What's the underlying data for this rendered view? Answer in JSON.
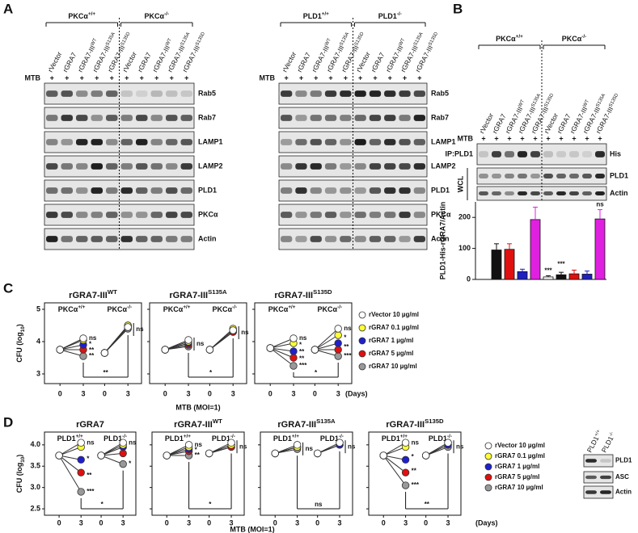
{
  "lanes": [
    {
      "name": "rVector"
    },
    {
      "name": "rGRA7"
    },
    {
      "name": "rGRA7-III",
      "sup": "WT"
    },
    {
      "name": "rGRA7-III",
      "sup": "S135A"
    },
    {
      "name": "rGRA7-III",
      "sup": "S135D"
    }
  ],
  "mtb": "MTB",
  "plus": "+",
  "panel_A": {
    "label": "A",
    "groups_left": [
      {
        "base": "PKCα",
        "sup": "+/+"
      },
      {
        "base": "PKCα",
        "sup": "-/-"
      }
    ],
    "groups_right": [
      {
        "base": "PLD1",
        "sup": "+/+"
      },
      {
        "base": "PLD1",
        "sup": "-/-"
      }
    ],
    "blots_left": [
      "Rab5",
      "Rab7",
      "LAMP1",
      "LAMP2",
      "PLD1",
      "PKCα",
      "Actin"
    ],
    "blots_right": [
      "Rab5",
      "Rab7",
      "LAMP1",
      "LAMP2",
      "PLD1",
      "PKCα",
      "Actin"
    ]
  },
  "panel_B": {
    "label": "B",
    "groups": [
      {
        "base": "PKCα",
        "sup": "+/+"
      },
      {
        "base": "PKCα",
        "sup": "-/-"
      }
    ],
    "ip": "IP:PLD1",
    "wcl": "WCL",
    "blots": [
      "His",
      "PLD1",
      "Actin"
    ],
    "chart": {
      "type": "bar",
      "ylabel": "PLD1-His-rGRA7/Actin",
      "ylim": [
        0,
        250
      ],
      "yticks": [
        0,
        100,
        200
      ],
      "values": [
        0,
        95,
        97,
        25,
        193,
        8,
        15,
        18,
        17,
        195
      ],
      "errors": [
        0,
        20,
        18,
        8,
        40,
        4,
        8,
        12,
        10,
        30
      ],
      "colors": [
        "#ffffff",
        "#111111",
        "#e01010",
        "#2020c0",
        "#e020e0",
        "#ffffff",
        "#111111",
        "#e01010",
        "#2020c0",
        "#e020e0"
      ],
      "value_annotations": [
        null,
        null,
        null,
        null,
        null,
        "***",
        "***",
        null,
        null,
        "ns"
      ]
    }
  },
  "panel_C": {
    "label": "C",
    "xlabel": "MTB (MOI=1)",
    "days": "(Days)",
    "ylabel": {
      "text": "CFU (log",
      "sub": "10",
      "end": ")"
    },
    "ylim": [
      2.7,
      5.2
    ],
    "yticks": [
      3,
      4,
      5
    ],
    "categories": [
      "0",
      "3",
      "0",
      "3"
    ],
    "group_labels": [
      {
        "base": "PKCα",
        "sup": "+/+"
      },
      {
        "base": "PKCα",
        "sup": "-/-"
      }
    ],
    "series": [
      {
        "name": "rVector 10 µg/ml",
        "color": "#ffffff"
      },
      {
        "name": "rGRA7 0.1 µg/ml",
        "color": "#ffff33"
      },
      {
        "name": "rGRA7 1 µg/ml",
        "color": "#1f1fd0"
      },
      {
        "name": "rGRA7 5 µg/ml",
        "color": "#e01010"
      },
      {
        "name": "rGRA7 10 µg/ml",
        "color": "#999999"
      }
    ],
    "charts": [
      {
        "type": "line",
        "title": {
          "name": "rGRA7-III",
          "sup": "WT"
        },
        "values": [
          [
            3.75,
            4.1,
            3.65,
            4.45
          ],
          [
            3.75,
            4.05,
            3.65,
            4.5
          ],
          [
            3.75,
            3.9,
            3.65,
            4.45
          ],
          [
            3.75,
            3.75,
            3.65,
            4.5
          ],
          [
            3.75,
            3.55,
            3.65,
            4.4
          ]
        ],
        "stars_left": [
          "ns",
          "*",
          "**",
          "**"
        ],
        "stars_right": [
          "ns"
        ],
        "bracket": "**"
      },
      {
        "type": "line",
        "title": {
          "name": "rGRA7-III",
          "sup": "S135A"
        },
        "values": [
          [
            3.75,
            4.05,
            3.75,
            4.35
          ],
          [
            3.75,
            4.0,
            3.75,
            4.4
          ],
          [
            3.75,
            3.95,
            3.75,
            4.35
          ],
          [
            3.75,
            3.9,
            3.75,
            4.3
          ],
          [
            3.75,
            3.85,
            3.75,
            4.3
          ]
        ],
        "stars_left": [
          "ns"
        ],
        "stars_right": [
          "ns"
        ],
        "bracket": "*"
      },
      {
        "type": "line",
        "title": {
          "name": "rGRA7-III",
          "sup": "S135D"
        },
        "values": [
          [
            3.8,
            4.1,
            3.75,
            4.4
          ],
          [
            3.8,
            3.95,
            3.75,
            4.2
          ],
          [
            3.8,
            3.7,
            3.75,
            3.95
          ],
          [
            3.8,
            3.5,
            3.75,
            3.75
          ],
          [
            3.8,
            3.25,
            3.75,
            3.55
          ]
        ],
        "stars_left": [
          "ns",
          "*",
          "**",
          "**",
          "***"
        ],
        "stars_right": [
          "ns",
          "*",
          "**",
          "***"
        ],
        "bracket": "*"
      }
    ]
  },
  "panel_D": {
    "label": "D",
    "xlabel": "MTB (MOI=1)",
    "days": "(Days)",
    "ylabel": {
      "text": "CFU (log",
      "sub": "10",
      "end": ")"
    },
    "ylim": [
      2.35,
      4.3
    ],
    "yticks": [
      2.5,
      {
        "value": 3,
        "label": "3.0"
      },
      3.5,
      {
        "value": 4,
        "label": "4.0"
      }
    ],
    "categories": [
      "0",
      "3",
      "0",
      "3"
    ],
    "group_labels": [
      {
        "base": "PLD1",
        "sup": "+/+"
      },
      {
        "base": "PLD1",
        "sup": "-/-"
      }
    ],
    "series": [
      {
        "name": "rVector 10 µg/ml",
        "color": "#ffffff"
      },
      {
        "name": "rGRA7 0.1 µg/ml",
        "color": "#ffff33"
      },
      {
        "name": "rGRA7 1 µg/ml",
        "color": "#1f1fd0"
      },
      {
        "name": "rGRA7 5 µg/ml",
        "color": "#e01010"
      },
      {
        "name": "rGRA7 10 µg/ml",
        "color": "#999999"
      }
    ],
    "charts": [
      {
        "type": "line",
        "title": {
          "name": "rGRA7"
        },
        "values": [
          [
            3.75,
            4.05,
            3.75,
            4.05
          ],
          [
            3.75,
            3.95,
            3.75,
            4.0
          ],
          [
            3.75,
            3.65,
            3.75,
            3.95
          ],
          [
            3.75,
            3.35,
            3.75,
            3.8
          ],
          [
            3.75,
            2.9,
            3.75,
            3.55
          ]
        ],
        "stars_left": [
          "ns",
          "*",
          "**",
          "***"
        ],
        "stars_right": [
          "ns",
          "*"
        ],
        "bracket": "*"
      },
      {
        "type": "line",
        "title": {
          "name": "rGRA7-III",
          "sup": "WT"
        },
        "values": [
          [
            3.75,
            4.0,
            3.8,
            4.05
          ],
          [
            3.75,
            3.95,
            3.8,
            4.0
          ],
          [
            3.75,
            3.9,
            3.8,
            4.0
          ],
          [
            3.75,
            3.85,
            3.8,
            3.95
          ],
          [
            3.75,
            3.75,
            3.8,
            3.95
          ]
        ],
        "stars_left": [
          "ns",
          "*",
          "**"
        ],
        "stars_right": [
          "ns"
        ],
        "bracket": "*"
      },
      {
        "type": "line",
        "title": {
          "name": "rGRA7-III",
          "sup": "S135A"
        },
        "values": [
          [
            3.8,
            4.0,
            3.8,
            4.05
          ],
          [
            3.8,
            3.95,
            3.8,
            4.05
          ],
          [
            3.8,
            3.95,
            3.8,
            4.0
          ],
          [
            3.8,
            3.95,
            3.8,
            4.0
          ],
          [
            3.8,
            3.9,
            3.8,
            4.0
          ]
        ],
        "stars_left": [
          "ns"
        ],
        "stars_right": [
          "ns"
        ],
        "bracket": "ns"
      },
      {
        "type": "line",
        "title": {
          "name": "rGRA7-III",
          "sup": "S135D"
        },
        "values": [
          [
            3.75,
            4.05,
            3.75,
            4.05
          ],
          [
            3.75,
            3.95,
            3.75,
            4.05
          ],
          [
            3.75,
            3.65,
            3.75,
            4.0
          ],
          [
            3.75,
            3.35,
            3.75,
            4.0
          ],
          [
            3.75,
            3.05,
            3.75,
            3.95
          ]
        ],
        "stars_left": [
          "ns",
          "*",
          "**",
          "***"
        ],
        "stars_right": [
          "ns"
        ],
        "bracket": "**"
      }
    ],
    "blot_groups": [
      {
        "base": "PLD1",
        "sup": "+/+"
      },
      {
        "base": "PLD1",
        "sup": "-/-"
      }
    ],
    "blots": [
      "PLD1",
      "ASC",
      "Actin"
    ]
  }
}
